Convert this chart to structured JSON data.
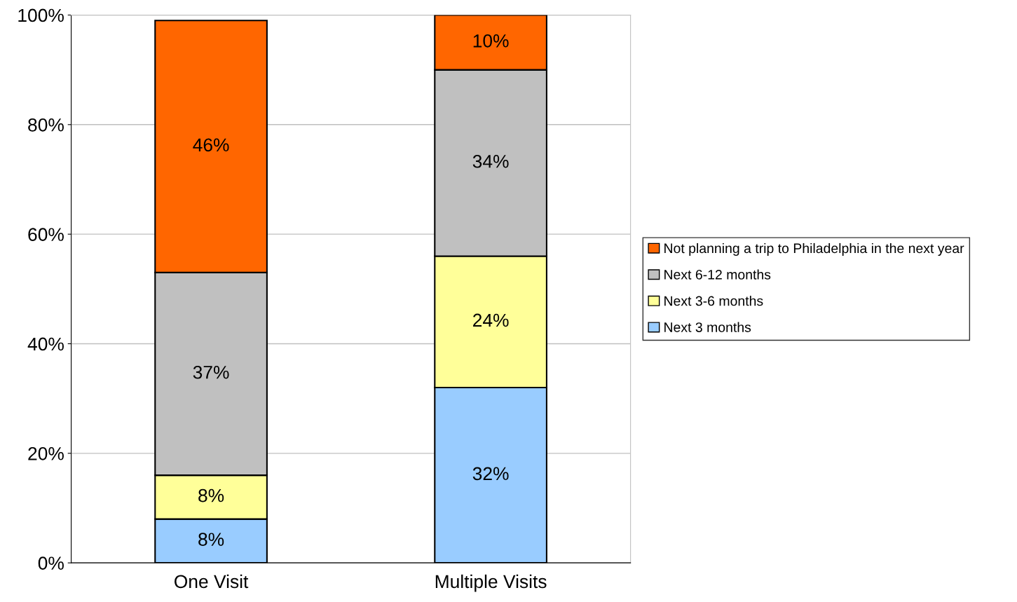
{
  "chart_data": {
    "type": "bar",
    "stacked": true,
    "categories": [
      "One Visit",
      "Multiple Visits"
    ],
    "series": [
      {
        "name": "Next 3 months",
        "color": "#99ccff",
        "values": [
          8,
          32
        ],
        "value_labels": [
          "8%",
          "32%"
        ]
      },
      {
        "name": "Next 3-6 months",
        "color": "#ffff99",
        "values": [
          8,
          24
        ],
        "value_labels": [
          "8%",
          "24%"
        ]
      },
      {
        "name": "Next 6-12 months",
        "color": "#c0c0c0",
        "values": [
          37,
          34
        ],
        "value_labels": [
          "37%",
          "34%"
        ]
      },
      {
        "name": "Not planning a trip to Philadelphia in the next year",
        "color": "#ff6600",
        "values": [
          46,
          10
        ],
        "value_labels": [
          "46%",
          "10%"
        ]
      }
    ],
    "ylim": [
      0,
      100
    ],
    "yticks": [
      {
        "value": 0,
        "label": "0%"
      },
      {
        "value": 20,
        "label": "20%"
      },
      {
        "value": 40,
        "label": "40%"
      },
      {
        "value": 60,
        "label": "60%"
      },
      {
        "value": 80,
        "label": "80%"
      },
      {
        "value": 100,
        "label": "100%"
      }
    ],
    "grid": "y",
    "legend": "right"
  }
}
